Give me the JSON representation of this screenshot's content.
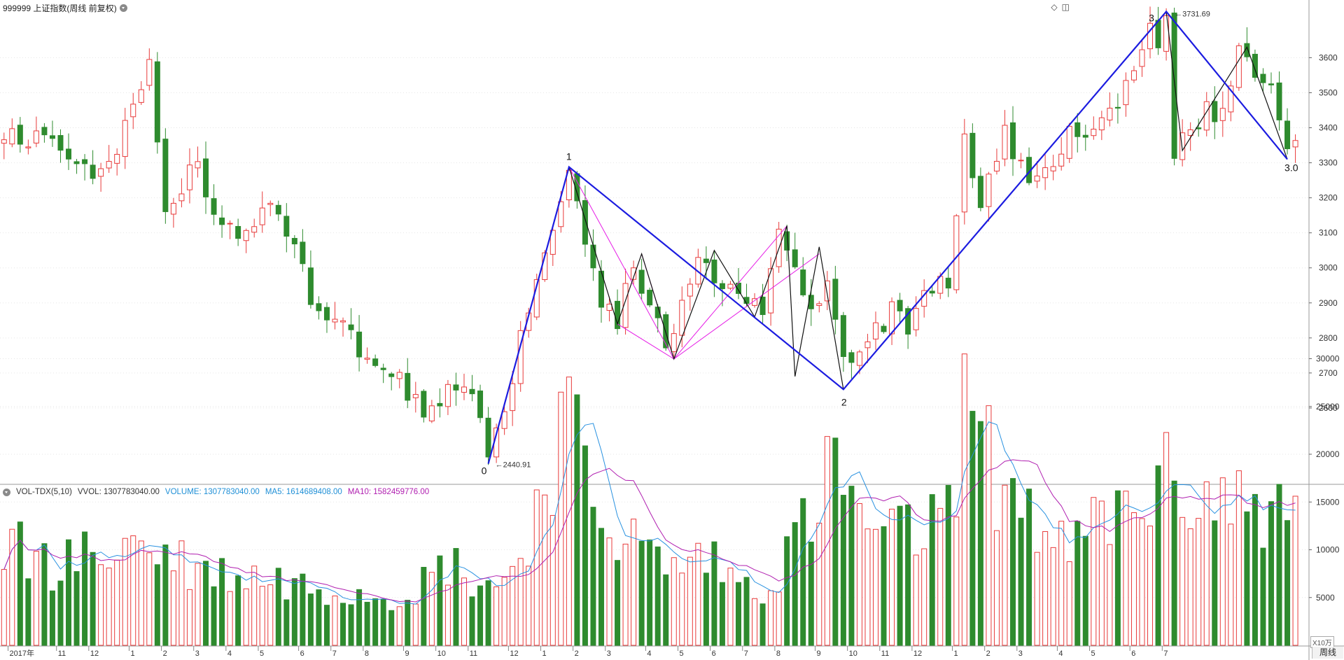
{
  "header": {
    "title": "999999 上证指数(周线 前复权)",
    "icons": [
      "diamond-icon",
      "window-icon"
    ]
  },
  "indicator": {
    "name": "VOL-TDX(5,10)",
    "vvol_label": "VVOL: 1307783040.00",
    "volume_label": "VOLUME: 1307783040.00",
    "ma5_label": "MA5: 1614689408.00",
    "ma10_label": "MA10: 1582459776.00"
  },
  "period_badge": "周线",
  "unit": "X10万",
  "colors": {
    "up": "#e83b3b",
    "down": "#2e8b2e",
    "wave_main": "#1c1ce0",
    "wave_sub": "#111111",
    "pink": "#e61ee6",
    "ma5": "#2891e0",
    "ma10": "#b01fb0",
    "grid": "#e6e6e6"
  },
  "chart_data": [
    {
      "type": "candlestick",
      "price_axis": {
        "ticks": [
          2600,
          2700,
          2800,
          2900,
          3000,
          3100,
          3200,
          3300,
          3400,
          3500,
          3600
        ]
      },
      "x_axis": {
        "labels": [
          {
            "i": 1,
            "t": "2017年"
          },
          {
            "i": 7,
            "t": "11"
          },
          {
            "i": 11,
            "t": "12"
          },
          {
            "i": 16,
            "t": "1"
          },
          {
            "i": 20,
            "t": "2"
          },
          {
            "i": 24,
            "t": "3"
          },
          {
            "i": 28,
            "t": "4"
          },
          {
            "i": 32,
            "t": "5"
          },
          {
            "i": 37,
            "t": "6"
          },
          {
            "i": 41,
            "t": "7"
          },
          {
            "i": 45,
            "t": "8"
          },
          {
            "i": 50,
            "t": "9"
          },
          {
            "i": 54,
            "t": "10"
          },
          {
            "i": 58,
            "t": "11"
          },
          {
            "i": 63,
            "t": "12"
          },
          {
            "i": 67,
            "t": "1"
          },
          {
            "i": 71,
            "t": "2"
          },
          {
            "i": 75,
            "t": "3"
          },
          {
            "i": 80,
            "t": "4"
          },
          {
            "i": 84,
            "t": "5"
          },
          {
            "i": 88,
            "t": "6"
          },
          {
            "i": 92,
            "t": "7"
          },
          {
            "i": 96,
            "t": "8"
          },
          {
            "i": 101,
            "t": "9"
          },
          {
            "i": 105,
            "t": "10"
          },
          {
            "i": 109,
            "t": "11"
          },
          {
            "i": 113,
            "t": "12"
          },
          {
            "i": 118,
            "t": "1"
          },
          {
            "i": 122,
            "t": "2"
          },
          {
            "i": 126,
            "t": "3"
          },
          {
            "i": 131,
            "t": "4"
          },
          {
            "i": 135,
            "t": "5"
          },
          {
            "i": 140,
            "t": "6"
          },
          {
            "i": 144,
            "t": "7"
          }
        ]
      },
      "anchors": [
        {
          "i": 0,
          "c": 3370
        },
        {
          "i": 6,
          "c": 3390
        },
        {
          "i": 10,
          "c": 3270
        },
        {
          "i": 14,
          "c": 3340
        },
        {
          "i": 18,
          "c": 3580
        },
        {
          "i": 20,
          "c": 3150
        },
        {
          "i": 24,
          "c": 3330
        },
        {
          "i": 26,
          "c": 3140
        },
        {
          "i": 30,
          "c": 3090
        },
        {
          "i": 33,
          "c": 3190
        },
        {
          "i": 36,
          "c": 3040
        },
        {
          "i": 39,
          "c": 2870
        },
        {
          "i": 43,
          "c": 2800
        },
        {
          "i": 46,
          "c": 2730
        },
        {
          "i": 49,
          "c": 2700
        },
        {
          "i": 52,
          "c": 2560
        },
        {
          "i": 55,
          "c": 2680
        },
        {
          "i": 58,
          "c": 2620
        },
        {
          "i": 60,
          "c": 2480
        },
        {
          "i": 62,
          "c": 2600
        },
        {
          "i": 65,
          "c": 2880
        },
        {
          "i": 68,
          "c": 3120
        },
        {
          "i": 70,
          "c": 3270
        },
        {
          "i": 72,
          "c": 3100
        },
        {
          "i": 74,
          "c": 2880
        },
        {
          "i": 76,
          "c": 2860
        },
        {
          "i": 78,
          "c": 3010
        },
        {
          "i": 80,
          "c": 2890
        },
        {
          "i": 82,
          "c": 2770
        },
        {
          "i": 84,
          "c": 2880
        },
        {
          "i": 86,
          "c": 3030
        },
        {
          "i": 88,
          "c": 2960
        },
        {
          "i": 90,
          "c": 2920
        },
        {
          "i": 92,
          "c": 2880
        },
        {
          "i": 94,
          "c": 2890
        },
        {
          "i": 96,
          "c": 3080
        },
        {
          "i": 98,
          "c": 2990
        },
        {
          "i": 100,
          "c": 2850
        },
        {
          "i": 102,
          "c": 2990
        },
        {
          "i": 104,
          "c": 2740
        },
        {
          "i": 106,
          "c": 2780
        },
        {
          "i": 108,
          "c": 2820
        },
        {
          "i": 110,
          "c": 2880
        },
        {
          "i": 112,
          "c": 2830
        },
        {
          "i": 114,
          "c": 2940
        },
        {
          "i": 117,
          "c": 2970
        },
        {
          "i": 119,
          "c": 3350
        },
        {
          "i": 121,
          "c": 3200
        },
        {
          "i": 124,
          "c": 3380
        },
        {
          "i": 126,
          "c": 3300
        },
        {
          "i": 128,
          "c": 3240
        },
        {
          "i": 130,
          "c": 3310
        },
        {
          "i": 132,
          "c": 3380
        },
        {
          "i": 134,
          "c": 3360
        },
        {
          "i": 136,
          "c": 3420
        },
        {
          "i": 138,
          "c": 3470
        },
        {
          "i": 140,
          "c": 3560
        },
        {
          "i": 142,
          "c": 3700
        },
        {
          "i": 143,
          "c": 3610
        },
        {
          "i": 144,
          "c": 3550
        },
        {
          "i": 145,
          "c": 3340
        },
        {
          "i": 147,
          "c": 3400
        },
        {
          "i": 149,
          "c": 3450
        },
        {
          "i": 151,
          "c": 3430
        },
        {
          "i": 153,
          "c": 3600
        },
        {
          "i": 155,
          "c": 3560
        },
        {
          "i": 157,
          "c": 3530
        },
        {
          "i": 159,
          "c": 3330
        }
      ],
      "wave_labels": [
        {
          "i": 60.5,
          "price": 2440.91,
          "text": "0",
          "value_text": "2440.91"
        },
        {
          "i": 70.5,
          "price": 3288,
          "text": "1"
        },
        {
          "i": 104.5,
          "price": 2653,
          "text": "2"
        },
        {
          "i": 144.5,
          "price": 3731.69,
          "text": "3",
          "value_text": "3731.69"
        },
        {
          "i": 159.5,
          "price": 3310,
          "text": "3.0"
        }
      ],
      "main_waves": [
        [
          60.5,
          2440.91
        ],
        [
          70.5,
          3288
        ],
        [
          104.5,
          2653
        ],
        [
          144.5,
          3731.69
        ],
        [
          159.5,
          3310
        ]
      ],
      "sub_waves": [
        [
          [
            70.5,
            3288
          ],
          [
            76.5,
            2840
          ],
          [
            79.5,
            3040
          ],
          [
            83.5,
            2740
          ],
          [
            88.5,
            3050
          ],
          [
            93.5,
            2860
          ],
          [
            97.5,
            3120
          ],
          [
            98.5,
            2690
          ],
          [
            101.5,
            3060
          ],
          [
            104.5,
            2653
          ]
        ],
        [
          [
            144.5,
            3731.69
          ],
          [
            146.5,
            3335
          ],
          [
            154.5,
            3630
          ],
          [
            159.5,
            3310
          ]
        ]
      ],
      "pink_lines": [
        [
          [
            70.5,
            3288
          ],
          [
            83.5,
            2740
          ]
        ],
        [
          [
            83.5,
            2740
          ],
          [
            97.5,
            3120
          ]
        ],
        [
          [
            83.5,
            2740
          ],
          [
            101.5,
            3040
          ]
        ],
        [
          [
            79.5,
            3040
          ],
          [
            83.5,
            2740
          ]
        ],
        [
          [
            76.5,
            2840
          ],
          [
            83.5,
            2740
          ]
        ]
      ]
    },
    {
      "type": "bar",
      "name": "VOL-TDX(5,10)",
      "value_axis": {
        "ticks": [
          5000,
          10000,
          15000,
          20000,
          25000,
          30000
        ]
      },
      "volume_anchors": [
        {
          "i": 0,
          "v": 10500
        },
        {
          "i": 6,
          "v": 8500
        },
        {
          "i": 12,
          "v": 9500
        },
        {
          "i": 16,
          "v": 11000
        },
        {
          "i": 20,
          "v": 9500
        },
        {
          "i": 24,
          "v": 8000
        },
        {
          "i": 28,
          "v": 7500
        },
        {
          "i": 32,
          "v": 7200
        },
        {
          "i": 36,
          "v": 6500
        },
        {
          "i": 40,
          "v": 6300
        },
        {
          "i": 44,
          "v": 6000
        },
        {
          "i": 48,
          "v": 5500
        },
        {
          "i": 52,
          "v": 6500
        },
        {
          "i": 55,
          "v": 9000
        },
        {
          "i": 58,
          "v": 7000
        },
        {
          "i": 62,
          "v": 6500
        },
        {
          "i": 66,
          "v": 14000
        },
        {
          "i": 69,
          "v": 24000
        },
        {
          "i": 72,
          "v": 18000
        },
        {
          "i": 75,
          "v": 13000
        },
        {
          "i": 79,
          "v": 10000
        },
        {
          "i": 83,
          "v": 8000
        },
        {
          "i": 87,
          "v": 9500
        },
        {
          "i": 91,
          "v": 6500
        },
        {
          "i": 95,
          "v": 6500
        },
        {
          "i": 98,
          "v": 11000
        },
        {
          "i": 101,
          "v": 15000
        },
        {
          "i": 103,
          "v": 19000
        },
        {
          "i": 106,
          "v": 13000
        },
        {
          "i": 110,
          "v": 11000
        },
        {
          "i": 114,
          "v": 12500
        },
        {
          "i": 117,
          "v": 13000
        },
        {
          "i": 119,
          "v": 28000
        },
        {
          "i": 121,
          "v": 20000
        },
        {
          "i": 124,
          "v": 17000
        },
        {
          "i": 127,
          "v": 15000
        },
        {
          "i": 130,
          "v": 9500
        },
        {
          "i": 133,
          "v": 10500
        },
        {
          "i": 136,
          "v": 13000
        },
        {
          "i": 140,
          "v": 14500
        },
        {
          "i": 143,
          "v": 17000
        },
        {
          "i": 147,
          "v": 16000
        },
        {
          "i": 151,
          "v": 15000
        },
        {
          "i": 155,
          "v": 15500
        },
        {
          "i": 159,
          "v": 13000
        }
      ]
    }
  ]
}
